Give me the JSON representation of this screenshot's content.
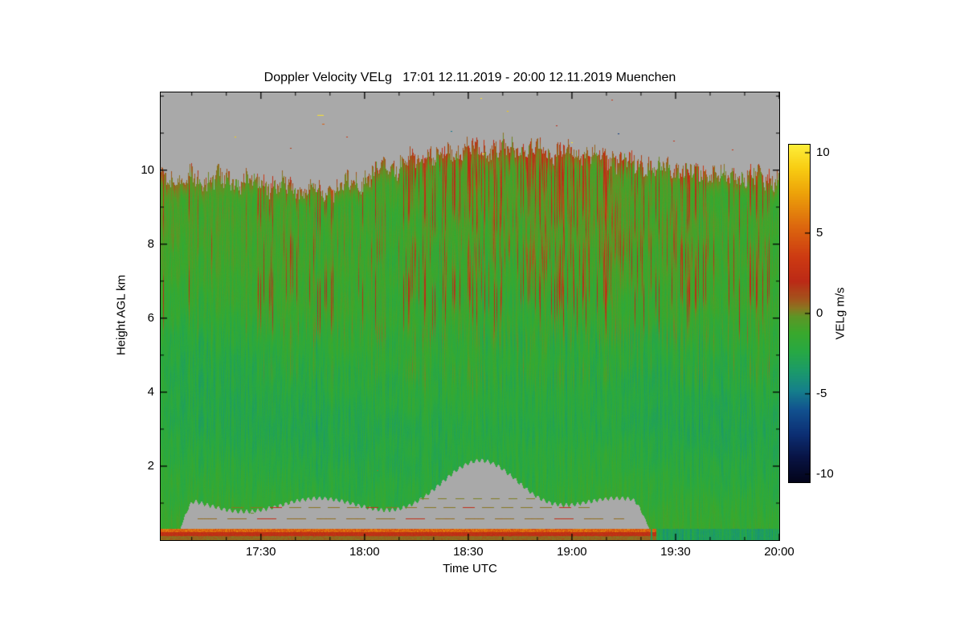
{
  "chart_data": {
    "type": "heatmap",
    "title": "Doppler Velocity VELg   17:01 12.11.2019 - 20:00 12.11.2019 Muenchen",
    "xlabel": "Time UTC",
    "ylabel": "Height AGL km",
    "x_tick_labels": [
      "17:30",
      "18:00",
      "18:30",
      "19:00",
      "19:30",
      "20:00"
    ],
    "x_tick_minutes": [
      1050,
      1080,
      1110,
      1140,
      1170,
      1200
    ],
    "x_range_minutes": [
      1021,
      1200
    ],
    "x_range_labels": [
      "17:01",
      "20:00"
    ],
    "y_ticks": [
      2,
      4,
      6,
      8,
      10
    ],
    "y_range": [
      0,
      12.1
    ],
    "value_units": "m/s",
    "colorbar": {
      "label": "VELg m/s",
      "ticks": [
        10,
        5,
        0,
        -5,
        -10
      ],
      "range": [
        -10.5,
        10.5
      ]
    },
    "colormap_stops": [
      [
        -10.5,
        "#03041a"
      ],
      [
        -9,
        "#081343"
      ],
      [
        -7.5,
        "#0c2f74"
      ],
      [
        -6,
        "#11518f"
      ],
      [
        -4.8,
        "#15808b"
      ],
      [
        -3.6,
        "#1b9a6a"
      ],
      [
        -2.4,
        "#27a844"
      ],
      [
        -1.2,
        "#3aa82c"
      ],
      [
        -0.2,
        "#5d9626"
      ],
      [
        0.35,
        "#8c7420"
      ],
      [
        0.9,
        "#a3541c"
      ],
      [
        2,
        "#bc2a16"
      ],
      [
        3.5,
        "#cd3a12"
      ],
      [
        5.5,
        "#dd6a0e"
      ],
      [
        7.5,
        "#eda309"
      ],
      [
        9,
        "#f8cc12"
      ],
      [
        10.5,
        "#fdee3a"
      ]
    ],
    "nodata_color": "#a9a9a9",
    "background_color": "#ffffff",
    "field_summary": {
      "description": "Time-height Doppler velocity field, mostly -3 to 0 m/s (green) with vertical positive (red/orange) streaks aloft, strongest 18:00-19:30 between 5 and 10.5 km; grey no-data above cloud top and in a low-level blob below ~2 km lasting until ~19:25; red/orange surface stripe near 0.2 km until ~19:25; dashed olive line artifacts near 0.6-1.1 km inside the low grey region.",
      "cloud_top_km_range": [
        9.3,
        10.7
      ],
      "low_blob_top_km_peak": 2.0,
      "low_blob_end_time": "19:25",
      "surface_stripe_value_ms": 2.5
    }
  }
}
